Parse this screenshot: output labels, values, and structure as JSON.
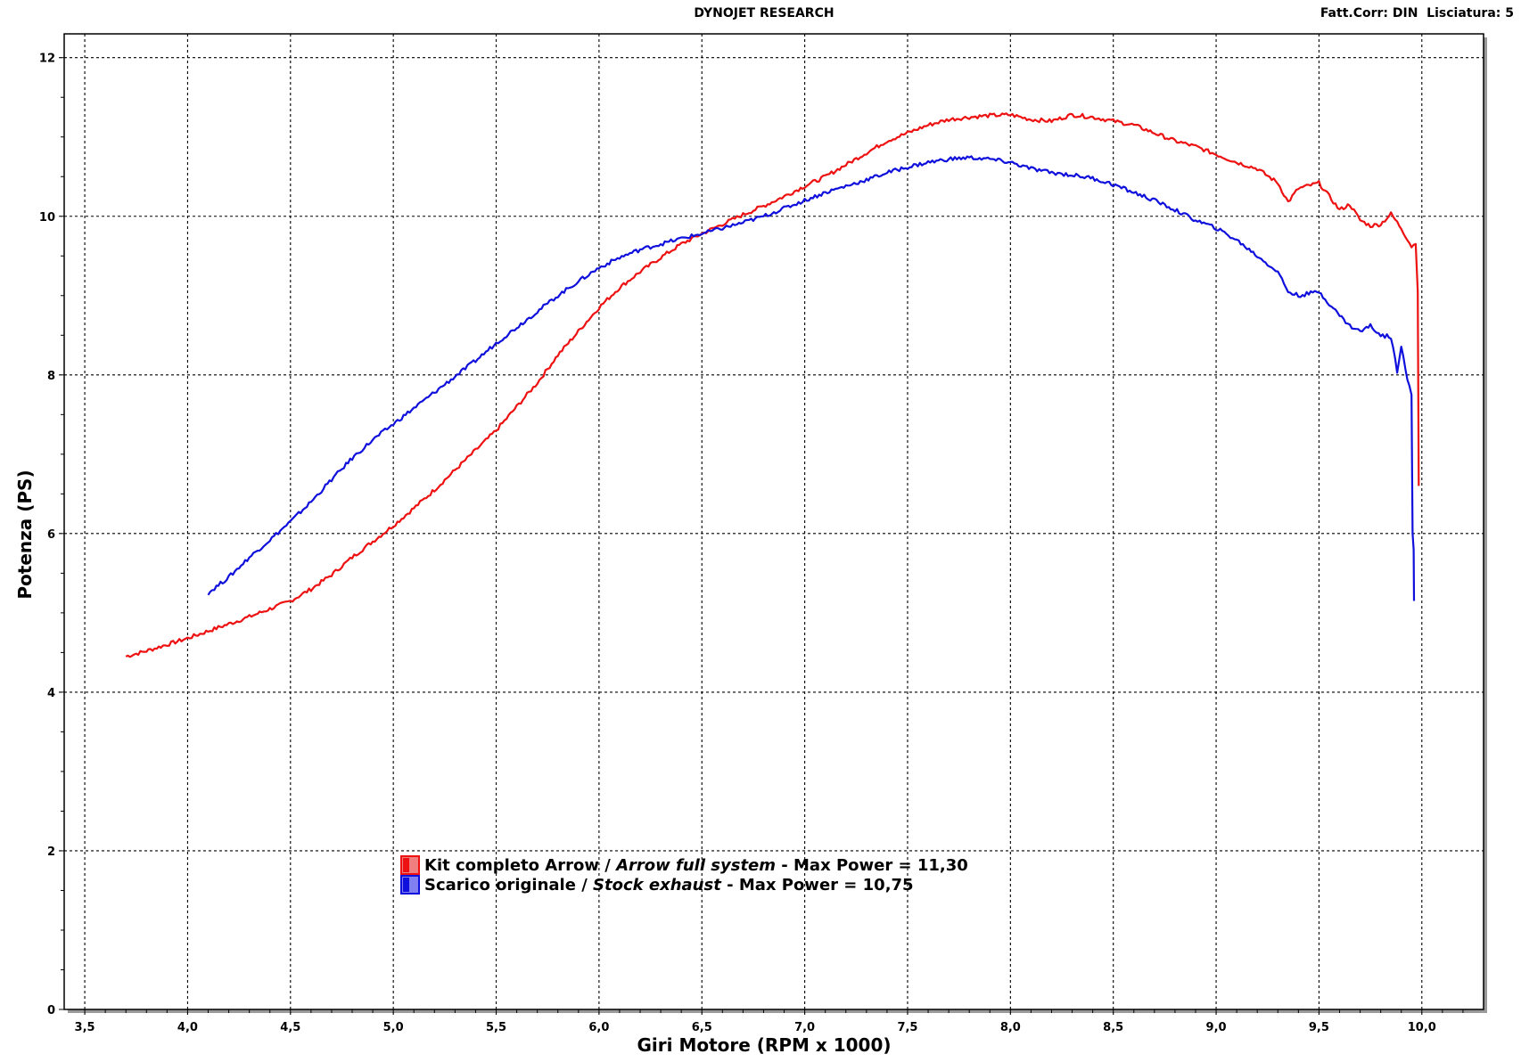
{
  "header": {
    "title": "DYNOJET RESEARCH",
    "right_info": "Fatt.Corr: DIN  Lisciatura: 5"
  },
  "chart_data": {
    "type": "line",
    "title": "DYNOJET RESEARCH",
    "xlabel": "Giri Motore (RPM x 1000)",
    "ylabel": "Potenza (PS)",
    "xlim": [
      3.4,
      10.3
    ],
    "ylim": [
      0,
      12.3
    ],
    "x_ticks": [
      "3,5",
      "4,0",
      "4,5",
      "5,0",
      "5,5",
      "6,0",
      "6,5",
      "7,0",
      "7,5",
      "8,0",
      "8,5",
      "9,0",
      "9,5",
      "10,0"
    ],
    "x_tick_values": [
      3.5,
      4.0,
      4.5,
      5.0,
      5.5,
      6.0,
      6.5,
      7.0,
      7.5,
      8.0,
      8.5,
      9.0,
      9.5,
      10.0
    ],
    "y_ticks": [
      "0",
      "2",
      "4",
      "6",
      "8",
      "10",
      "12"
    ],
    "y_tick_values": [
      0,
      2,
      4,
      6,
      8,
      10,
      12
    ],
    "grid": true,
    "legend_position": "lower-left",
    "series": [
      {
        "name": "Kit completo Arrow / Arrow full system - Max Power = 11,30",
        "legend_parts": [
          "Kit completo Arrow  / ",
          "Arrow full system",
          " - Max Power = 11,30"
        ],
        "color": "#ee1111",
        "swatch_color": "#f08080",
        "x": [
          3.7,
          3.8,
          3.9,
          4.0,
          4.1,
          4.2,
          4.3,
          4.4,
          4.5,
          4.6,
          4.7,
          4.8,
          4.9,
          5.0,
          5.1,
          5.2,
          5.3,
          5.4,
          5.5,
          5.6,
          5.7,
          5.8,
          5.9,
          6.0,
          6.1,
          6.2,
          6.3,
          6.4,
          6.5,
          6.6,
          6.7,
          6.8,
          6.9,
          7.0,
          7.1,
          7.2,
          7.3,
          7.4,
          7.5,
          7.6,
          7.7,
          7.8,
          7.9,
          8.0,
          8.1,
          8.2,
          8.3,
          8.4,
          8.5,
          8.6,
          8.7,
          8.8,
          8.9,
          9.0,
          9.1,
          9.2,
          9.3,
          9.35,
          9.4,
          9.5,
          9.6,
          9.65,
          9.7,
          9.75,
          9.8,
          9.85,
          9.9,
          9.95,
          9.97,
          9.98,
          9.985
        ],
        "values": [
          4.45,
          4.52,
          4.6,
          4.68,
          4.77,
          4.86,
          4.95,
          5.05,
          5.15,
          5.3,
          5.48,
          5.7,
          5.9,
          6.1,
          6.32,
          6.55,
          6.8,
          7.05,
          7.3,
          7.6,
          7.9,
          8.25,
          8.55,
          8.85,
          9.1,
          9.3,
          9.48,
          9.65,
          9.78,
          9.9,
          10.02,
          10.13,
          10.25,
          10.38,
          10.5,
          10.65,
          10.8,
          10.95,
          11.05,
          11.15,
          11.22,
          11.25,
          11.27,
          11.28,
          11.22,
          11.2,
          11.28,
          11.25,
          11.2,
          11.15,
          11.05,
          10.95,
          10.88,
          10.78,
          10.68,
          10.6,
          10.42,
          10.18,
          10.35,
          10.42,
          10.08,
          10.15,
          9.95,
          9.88,
          9.9,
          10.03,
          9.85,
          9.62,
          9.65,
          9.05,
          6.6
        ]
      },
      {
        "name": "Scarico originale / Stock exhaust - Max Power = 10,75",
        "legend_parts": [
          "Scarico originale  / ",
          "Stock exhaust",
          " - Max Power = 10,75"
        ],
        "color": "#1010dd",
        "swatch_color": "#8080f0",
        "x": [
          4.1,
          4.2,
          4.3,
          4.4,
          4.5,
          4.6,
          4.7,
          4.8,
          4.9,
          5.0,
          5.1,
          5.2,
          5.3,
          5.4,
          5.5,
          5.6,
          5.7,
          5.8,
          5.9,
          6.0,
          6.1,
          6.2,
          6.3,
          6.4,
          6.5,
          6.6,
          6.7,
          6.8,
          6.9,
          7.0,
          7.1,
          7.2,
          7.3,
          7.4,
          7.5,
          7.6,
          7.7,
          7.8,
          7.9,
          8.0,
          8.1,
          8.2,
          8.3,
          8.4,
          8.5,
          8.6,
          8.7,
          8.8,
          8.9,
          9.0,
          9.1,
          9.2,
          9.3,
          9.35,
          9.4,
          9.5,
          9.6,
          9.65,
          9.7,
          9.75,
          9.8,
          9.85,
          9.88,
          9.9,
          9.93,
          9.95,
          9.955,
          9.96,
          9.962
        ],
        "values": [
          5.25,
          5.45,
          5.7,
          5.92,
          6.15,
          6.4,
          6.68,
          6.95,
          7.18,
          7.38,
          7.58,
          7.78,
          7.98,
          8.18,
          8.4,
          8.6,
          8.8,
          9.0,
          9.18,
          9.35,
          9.48,
          9.58,
          9.65,
          9.72,
          9.78,
          9.85,
          9.92,
          10.0,
          10.1,
          10.2,
          10.3,
          10.38,
          10.46,
          10.55,
          10.62,
          10.68,
          10.72,
          10.74,
          10.72,
          10.68,
          10.6,
          10.55,
          10.52,
          10.48,
          10.4,
          10.3,
          10.2,
          10.08,
          9.95,
          9.85,
          9.7,
          9.5,
          9.3,
          9.05,
          9.0,
          9.05,
          8.75,
          8.62,
          8.55,
          8.62,
          8.5,
          8.48,
          8.05,
          8.38,
          7.95,
          7.75,
          6.0,
          5.8,
          5.15
        ]
      }
    ]
  }
}
